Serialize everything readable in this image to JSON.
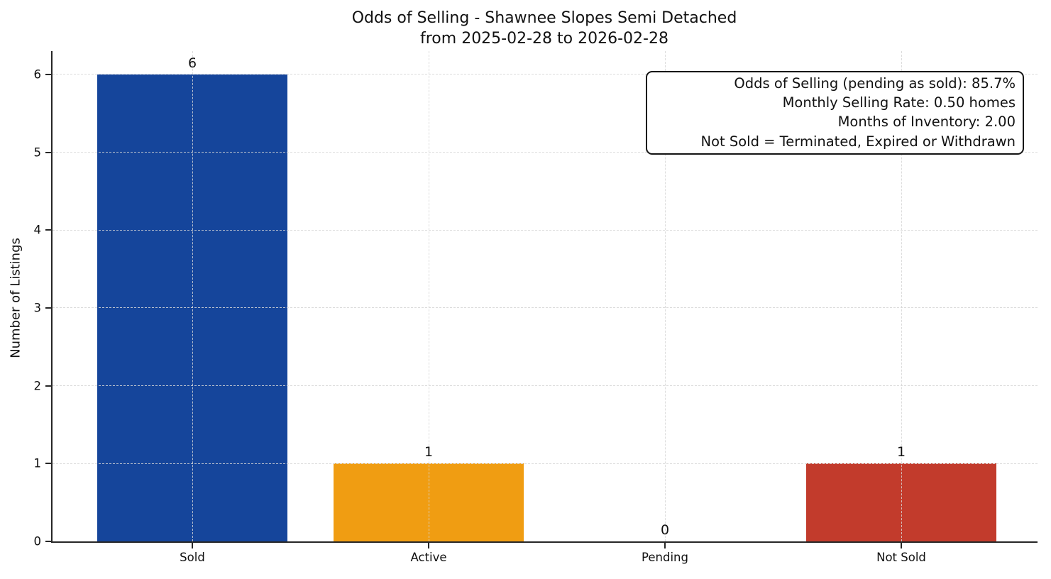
{
  "chart_data": {
    "type": "bar",
    "title": "Odds of Selling - Shawnee Slopes Semi Detached",
    "subtitle": "from 2025-02-28 to 2026-02-28",
    "categories": [
      "Sold",
      "Active",
      "Pending",
      "Not Sold"
    ],
    "values": [
      6,
      1,
      0,
      1
    ],
    "bar_colors": [
      "#15459b",
      "#f09d12",
      null,
      "#c23b2c"
    ],
    "value_labels": [
      "6",
      "1",
      "0",
      "1"
    ],
    "xlabel": "",
    "ylabel": "Number of Listings",
    "yticks": [
      0,
      1,
      2,
      3,
      4,
      5,
      6
    ],
    "ylim": [
      0,
      6.3
    ],
    "grid": "dashed horizontal and vertical gridlines",
    "legend": "none"
  },
  "annotation": {
    "lines": [
      "Odds of Selling (pending as sold): 85.7%",
      "Monthly Selling Rate: 0.50 homes",
      "Months of Inventory: 2.00",
      "Not Sold = Terminated, Expired or Withdrawn"
    ]
  },
  "colors": {
    "axis": "#262626",
    "grid": "#d6d6d6",
    "text": "#111111",
    "background": "#ffffff"
  }
}
